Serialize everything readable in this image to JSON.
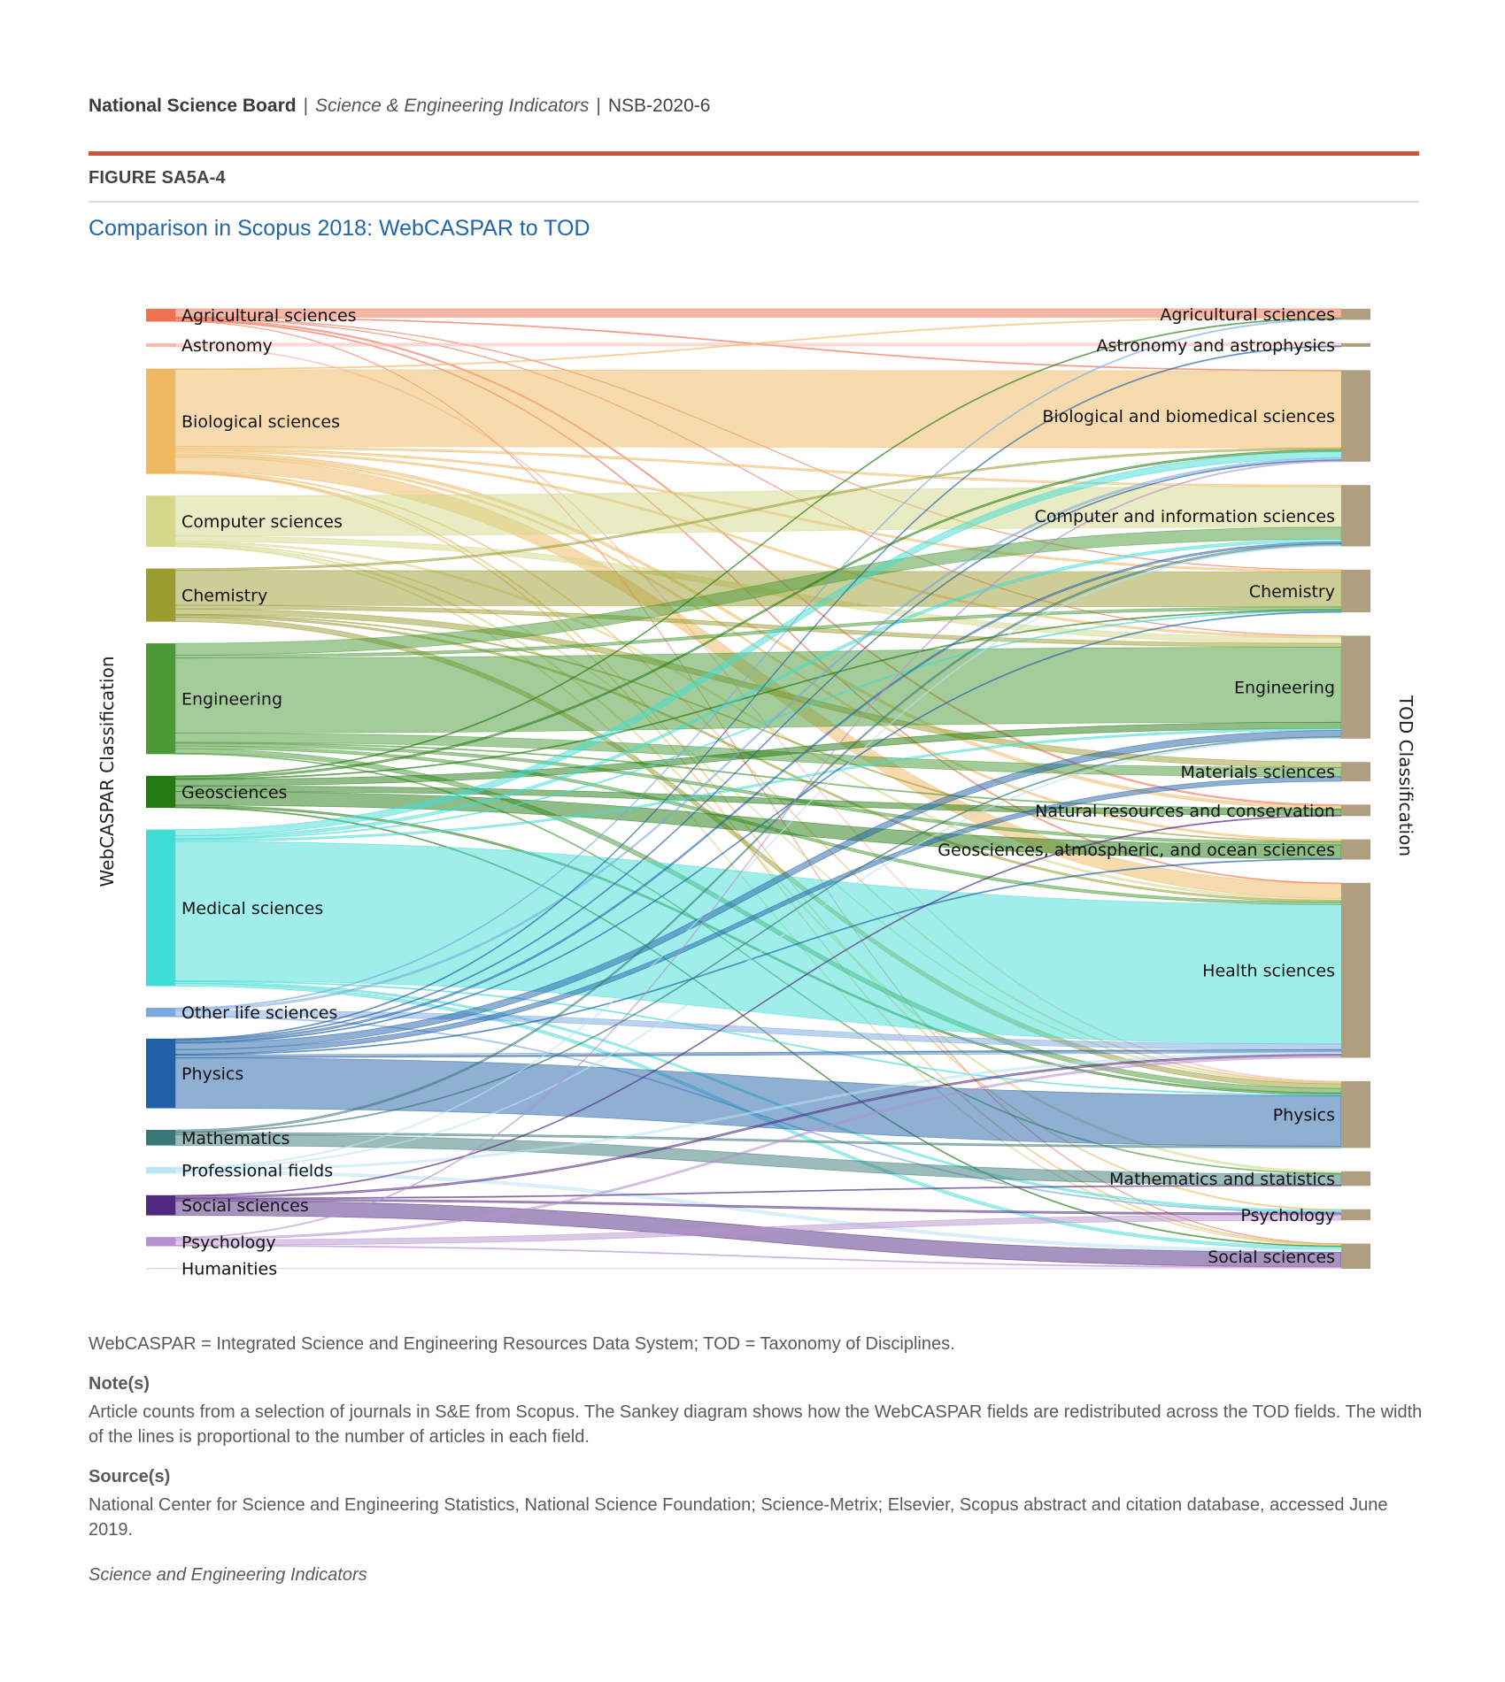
{
  "header": {
    "org": "National Science Board",
    "publication": "Science & Engineering Indicators",
    "report_id": "NSB-2020-6",
    "separator": "|"
  },
  "figure_id": "FIGURE SA5A-4",
  "colors": {
    "accent_rule": "#c8553a",
    "title": "#2266aa",
    "right_node": "#b09e80"
  },
  "chart_data": {
    "type": "sankey",
    "title": "Comparison in Scopus 2018: WebCASPAR to TOD",
    "left_axis_label": "WebCASPAR Classification",
    "right_axis_label": "TOD Classification",
    "value_units": "relative share of articles (estimated from band widths)",
    "sources": [
      {
        "name": "Agricultural sciences",
        "color": "#f07050"
      },
      {
        "name": "Astronomy",
        "color": "#f8b8b0"
      },
      {
        "name": "Biological sciences",
        "color": "#f0b860"
      },
      {
        "name": "Computer sciences",
        "color": "#d4d888"
      },
      {
        "name": "Chemistry",
        "color": "#9a9c30"
      },
      {
        "name": "Engineering",
        "color": "#4a9a38"
      },
      {
        "name": "Geosciences",
        "color": "#227a10"
      },
      {
        "name": "Medical sciences",
        "color": "#40ddd6"
      },
      {
        "name": "Other life sciences",
        "color": "#7aa8e0"
      },
      {
        "name": "Physics",
        "color": "#2060a8"
      },
      {
        "name": "Mathematics",
        "color": "#3a7878"
      },
      {
        "name": "Professional fields",
        "color": "#b8e4f4"
      },
      {
        "name": "Social sciences",
        "color": "#502880"
      },
      {
        "name": "Psychology",
        "color": "#b890d0"
      },
      {
        "name": "Humanities",
        "color": "#e8c8f0"
      }
    ],
    "targets": [
      {
        "name": "Agricultural sciences"
      },
      {
        "name": "Astronomy and astrophysics"
      },
      {
        "name": "Biological and biomedical sciences"
      },
      {
        "name": "Computer and information sciences"
      },
      {
        "name": "Chemistry"
      },
      {
        "name": "Engineering"
      },
      {
        "name": "Materials sciences"
      },
      {
        "name": "Natural resources and conservation"
      },
      {
        "name": "Geosciences, atmospheric, and ocean sciences"
      },
      {
        "name": "Health sciences"
      },
      {
        "name": "Physics"
      },
      {
        "name": "Mathematics and statistics"
      },
      {
        "name": "Psychology"
      },
      {
        "name": "Social sciences"
      }
    ],
    "flows": [
      [
        "Agricultural sciences",
        "Agricultural sciences",
        9
      ],
      [
        "Agricultural sciences",
        "Biological and biomedical sciences",
        1
      ],
      [
        "Agricultural sciences",
        "Natural resources and conservation",
        1.5
      ],
      [
        "Agricultural sciences",
        "Health sciences",
        1
      ],
      [
        "Agricultural sciences",
        "Chemistry",
        0.5
      ],
      [
        "Agricultural sciences",
        "Engineering",
        0.5
      ],
      [
        "Agricultural sciences",
        "Social sciences",
        0.5
      ],
      [
        "Astronomy",
        "Astronomy and astrophysics",
        3
      ],
      [
        "Astronomy",
        "Physics",
        1
      ],
      [
        "Biological sciences",
        "Agricultural sciences",
        1
      ],
      [
        "Biological sciences",
        "Biological and biomedical sciences",
        84
      ],
      [
        "Biological sciences",
        "Chemistry",
        2
      ],
      [
        "Biological sciences",
        "Engineering",
        2
      ],
      [
        "Biological sciences",
        "Natural resources and conservation",
        3
      ],
      [
        "Biological sciences",
        "Geosciences, atmospheric, and ocean sciences",
        2
      ],
      [
        "Biological sciences",
        "Health sciences",
        16
      ],
      [
        "Biological sciences",
        "Physics",
        1
      ],
      [
        "Biological sciences",
        "Psychology",
        1
      ],
      [
        "Biological sciences",
        "Social sciences",
        1
      ],
      [
        "Biological sciences",
        "Computer and information sciences",
        2
      ],
      [
        "Computer sciences",
        "Computer and information sciences",
        44
      ],
      [
        "Computer sciences",
        "Engineering",
        6
      ],
      [
        "Computer sciences",
        "Health sciences",
        2
      ],
      [
        "Computer sciences",
        "Mathematics and statistics",
        2
      ],
      [
        "Computer sciences",
        "Social sciences",
        1
      ],
      [
        "Computer sciences",
        "Physics",
        1
      ],
      [
        "Chemistry",
        "Chemistry",
        38
      ],
      [
        "Chemistry",
        "Engineering",
        4
      ],
      [
        "Chemistry",
        "Materials sciences",
        6
      ],
      [
        "Chemistry",
        "Biological and biomedical sciences",
        2
      ],
      [
        "Chemistry",
        "Physics",
        5
      ],
      [
        "Chemistry",
        "Health sciences",
        2
      ],
      [
        "Chemistry",
        "Geosciences, atmospheric, and ocean sciences",
        1
      ],
      [
        "Engineering",
        "Computer and information sciences",
        13
      ],
      [
        "Engineering",
        "Engineering",
        82
      ],
      [
        "Engineering",
        "Materials sciences",
        10
      ],
      [
        "Engineering",
        "Geosciences, atmospheric, and ocean sciences",
        3
      ],
      [
        "Engineering",
        "Chemistry",
        3
      ],
      [
        "Engineering",
        "Physics",
        5
      ],
      [
        "Engineering",
        "Health sciences",
        3
      ],
      [
        "Engineering",
        "Natural resources and conservation",
        1
      ],
      [
        "Engineering",
        "Mathematics and statistics",
        1
      ],
      [
        "Geosciences",
        "Geosciences, atmospheric, and ocean sciences",
        15
      ],
      [
        "Geosciences",
        "Engineering",
        7
      ],
      [
        "Geosciences",
        "Natural resources and conservation",
        6
      ],
      [
        "Geosciences",
        "Agricultural sciences",
        1
      ],
      [
        "Geosciences",
        "Physics",
        2
      ],
      [
        "Geosciences",
        "Chemistry",
        1
      ],
      [
        "Geosciences",
        "Biological and biomedical sciences",
        2
      ],
      [
        "Geosciences",
        "Social sciences",
        1
      ],
      [
        "Medical sciences",
        "Health sciences",
        152
      ],
      [
        "Medical sciences",
        "Biological and biomedical sciences",
        7
      ],
      [
        "Medical sciences",
        "Computer and information sciences",
        3
      ],
      [
        "Medical sciences",
        "Engineering",
        2
      ],
      [
        "Medical sciences",
        "Psychology",
        2
      ],
      [
        "Medical sciences",
        "Social sciences",
        3
      ],
      [
        "Medical sciences",
        "Chemistry",
        1
      ],
      [
        "Medical sciences",
        "Physics",
        1
      ],
      [
        "Other life sciences",
        "Biological and biomedical sciences",
        2
      ],
      [
        "Other life sciences",
        "Health sciences",
        6
      ],
      [
        "Other life sciences",
        "Agricultural sciences",
        1
      ],
      [
        "Other life sciences",
        "Psychology",
        1
      ],
      [
        "Physics",
        "Physics",
        55
      ],
      [
        "Physics",
        "Engineering",
        7
      ],
      [
        "Physics",
        "Materials sciences",
        5
      ],
      [
        "Physics",
        "Astronomy and astrophysics",
        1
      ],
      [
        "Physics",
        "Chemistry",
        1
      ],
      [
        "Physics",
        "Health sciences",
        3
      ],
      [
        "Physics",
        "Computer and information sciences",
        2
      ],
      [
        "Physics",
        "Biological and biomedical sciences",
        1
      ],
      [
        "Physics",
        "Geosciences, atmospheric, and ocean sciences",
        1
      ],
      [
        "Mathematics",
        "Mathematics and statistics",
        12
      ],
      [
        "Mathematics",
        "Computer and information sciences",
        2
      ],
      [
        "Mathematics",
        "Physics",
        2
      ],
      [
        "Mathematics",
        "Engineering",
        1
      ],
      [
        "Professional fields",
        "Social sciences",
        3
      ],
      [
        "Professional fields",
        "Health sciences",
        2
      ],
      [
        "Professional fields",
        "Engineering",
        1
      ],
      [
        "Professional fields",
        "Computer and information sciences",
        1
      ],
      [
        "Social sciences",
        "Social sciences",
        16
      ],
      [
        "Social sciences",
        "Psychology",
        2
      ],
      [
        "Social sciences",
        "Health sciences",
        2
      ],
      [
        "Social sciences",
        "Mathematics and statistics",
        1
      ],
      [
        "Social sciences",
        "Natural resources and conservation",
        1
      ],
      [
        "Psychology",
        "Psychology",
        6
      ],
      [
        "Psychology",
        "Health sciences",
        2
      ],
      [
        "Psychology",
        "Social sciences",
        1
      ],
      [
        "Psychology",
        "Biological and biomedical sciences",
        1
      ],
      [
        "Humanities",
        "Social sciences",
        1
      ]
    ]
  },
  "footer": {
    "abbrev": "WebCASPAR = Integrated Science and Engineering Resources Data System; TOD = Taxonomy of Disciplines.",
    "note_heading": "Note(s)",
    "note_text": "Article counts from a selection of journals in S&E from Scopus. The Sankey diagram shows how the WebCASPAR fields are redistributed across the TOD fields. The width of the lines is proportional to the number of articles in each field.",
    "source_heading": "Source(s)",
    "source_text": "National Center for Science and Engineering Statistics, National Science Foundation; Science-Metrix; Elsevier, Scopus abstract and citation database, accessed June 2019.",
    "publication": "Science and Engineering Indicators"
  }
}
